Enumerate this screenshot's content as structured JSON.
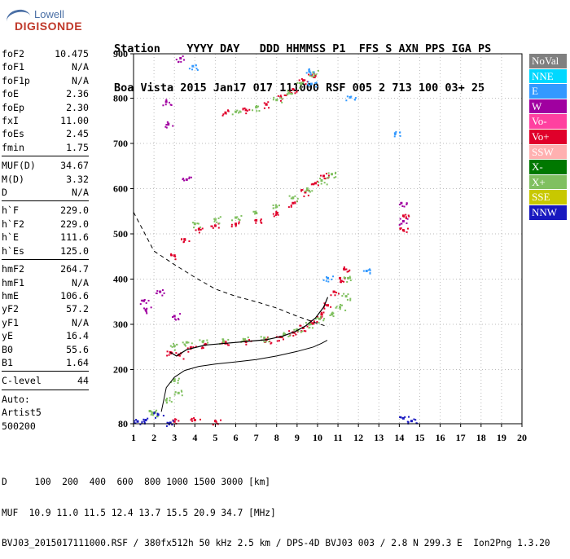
{
  "logo": {
    "line1": "Lowell",
    "line2": "DIGISONDE"
  },
  "header": {
    "line1": "Station    YYYY DAY   DDD HHMMSS P1  FFS S AXN PPS IGA PS",
    "line2": "Boa Vista 2015 Jan17 017 111000 RSF 005 2 713 100 03+ 25"
  },
  "params": [
    [
      [
        "foF2",
        "10.475"
      ],
      [
        "foF1",
        "N/A"
      ],
      [
        "foF1p",
        "N/A"
      ],
      [
        "foE",
        "2.36"
      ],
      [
        "foEp",
        "2.30"
      ],
      [
        "fxI",
        "11.00"
      ],
      [
        "foEs",
        "2.45"
      ],
      [
        "fmin",
        "1.75"
      ]
    ],
    [
      [
        "MUF(D)",
        "34.67"
      ],
      [
        "M(D)",
        "3.32"
      ],
      [
        "D",
        "N/A"
      ]
    ],
    [
      [
        "h`F",
        "229.0"
      ],
      [
        "h`F2",
        "229.0"
      ],
      [
        "h`E",
        "111.6"
      ],
      [
        "h`Es",
        "125.0"
      ]
    ],
    [
      [
        "hmF2",
        "264.7"
      ],
      [
        "hmF1",
        "N/A"
      ],
      [
        "hmE",
        "106.6"
      ],
      [
        "yF2",
        "57.2"
      ],
      [
        "yF1",
        "N/A"
      ],
      [
        "yE",
        "16.4"
      ],
      [
        "B0",
        "55.6"
      ],
      [
        "B1",
        "1.64"
      ]
    ],
    [
      [
        "C-level",
        "44"
      ]
    ]
  ],
  "software": [
    "Auto:",
    "Artist5",
    "500200"
  ],
  "footer": {
    "line1": "D     100  200  400  600  800 1000 1500 3000 [km]",
    "line2": "MUF  10.9 11.0 11.5 12.4 13.7 15.5 20.9 34.7 [MHz]",
    "line3": "BVJ03_2015017111000.RSF / 380fx512h 50 kHz 2.5 km / DPS-4D BVJ03 003 / 2.8 N 299.3 E  Ion2Png 1.3.20"
  },
  "legend": [
    {
      "label": "NoVal",
      "color": "#808080"
    },
    {
      "label": "NNE",
      "color": "#00d8ff"
    },
    {
      "label": "E",
      "color": "#3399ff"
    },
    {
      "label": "W",
      "color": "#a000a0"
    },
    {
      "label": "Vo-",
      "color": "#ff40a0"
    },
    {
      "label": "Vo+",
      "color": "#e0002a"
    },
    {
      "label": "SSW",
      "color": "#ffb0b0"
    },
    {
      "label": "X-",
      "color": "#007800"
    },
    {
      "label": "X+",
      "color": "#80c060"
    },
    {
      "label": "SSE",
      "color": "#c8c800"
    },
    {
      "label": "NNW",
      "color": "#1818c0"
    }
  ],
  "chart_data": {
    "type": "scatter",
    "xlim": [
      1,
      20
    ],
    "ylim": [
      80,
      900
    ],
    "xticks": [
      1,
      2,
      3,
      4,
      5,
      6,
      7,
      8,
      9,
      10,
      11,
      12,
      13,
      14,
      15,
      16,
      17,
      18,
      19,
      20
    ],
    "yticks": [
      80,
      200,
      300,
      400,
      500,
      600,
      700,
      800,
      900
    ],
    "grid": true,
    "series": [
      {
        "name": "Vo+",
        "color": "#e0002a",
        "points": [
          [
            2.8,
            238
          ],
          [
            3.2,
            232
          ],
          [
            3.8,
            248
          ],
          [
            4.5,
            255
          ],
          [
            5.5,
            258
          ],
          [
            6.5,
            262
          ],
          [
            7.5,
            266
          ],
          [
            8.2,
            272
          ],
          [
            8.8,
            282
          ],
          [
            9.3,
            292
          ],
          [
            9.8,
            302
          ],
          [
            10.2,
            322
          ],
          [
            10.5,
            342
          ],
          [
            10.8,
            372
          ],
          [
            11.1,
            402
          ],
          [
            11.3,
            422
          ]
        ]
      },
      {
        "name": "X+",
        "color": "#80c060",
        "points": [
          [
            3.0,
            252
          ],
          [
            3.6,
            260
          ],
          [
            4.4,
            262
          ],
          [
            5.4,
            262
          ],
          [
            6.4,
            266
          ],
          [
            7.4,
            270
          ],
          [
            8.4,
            278
          ],
          [
            9.0,
            288
          ],
          [
            9.6,
            300
          ],
          [
            10.1,
            312
          ],
          [
            10.7,
            322
          ],
          [
            11.1,
            338
          ],
          [
            11.4,
            362
          ],
          [
            11.5,
            402
          ]
        ]
      },
      {
        "name": "Vo+",
        "color": "#e0002a",
        "points": [
          [
            3.0,
            452
          ],
          [
            3.5,
            488
          ],
          [
            4.2,
            510
          ],
          [
            5.0,
            518
          ],
          [
            6.0,
            522
          ],
          [
            7.0,
            530
          ],
          [
            8.0,
            545
          ],
          [
            8.8,
            568
          ],
          [
            9.4,
            592
          ],
          [
            9.9,
            612
          ],
          [
            10.3,
            628
          ]
        ]
      },
      {
        "name": "X+",
        "color": "#80c060",
        "points": [
          [
            4.0,
            522
          ],
          [
            5.0,
            532
          ],
          [
            6.0,
            536
          ],
          [
            7.0,
            546
          ],
          [
            8.0,
            560
          ],
          [
            8.8,
            580
          ],
          [
            9.5,
            600
          ],
          [
            10.2,
            618
          ],
          [
            10.7,
            632
          ]
        ]
      },
      {
        "name": "Vo+",
        "color": "#e0002a",
        "points": [
          [
            5.5,
            768
          ],
          [
            6.5,
            774
          ],
          [
            7.5,
            786
          ],
          [
            8.2,
            802
          ],
          [
            8.8,
            820
          ],
          [
            9.3,
            840
          ],
          [
            9.7,
            852
          ]
        ]
      },
      {
        "name": "X+",
        "color": "#80c060",
        "points": [
          [
            6.0,
            770
          ],
          [
            7.0,
            780
          ],
          [
            8.0,
            796
          ],
          [
            8.6,
            812
          ],
          [
            9.2,
            832
          ],
          [
            9.8,
            858
          ]
        ]
      },
      {
        "name": "W",
        "color": "#a000a0",
        "points": [
          [
            1.5,
            352
          ],
          [
            1.6,
            332
          ],
          [
            2.3,
            372
          ],
          [
            2.6,
            792
          ],
          [
            2.7,
            742
          ],
          [
            3.0,
            318
          ],
          [
            3.3,
            890
          ],
          [
            3.6,
            620
          ],
          [
            14.1,
            568
          ],
          [
            14.2,
            528
          ]
        ]
      },
      {
        "name": "E",
        "color": "#3399ff",
        "points": [
          [
            3.9,
            872
          ],
          [
            9.6,
            860
          ],
          [
            9.7,
            832
          ],
          [
            10.5,
            402
          ],
          [
            11.6,
            802
          ],
          [
            12.4,
            418
          ],
          [
            13.8,
            722
          ]
        ]
      },
      {
        "name": "Vo+",
        "color": "#e0002a",
        "points": [
          [
            3.0,
            85
          ],
          [
            4.0,
            88
          ],
          [
            5.0,
            86
          ],
          [
            14.2,
            540
          ],
          [
            14.2,
            508
          ]
        ]
      },
      {
        "name": "X+",
        "color": "#80c060",
        "points": [
          [
            2.0,
            104
          ],
          [
            2.6,
            132
          ],
          [
            3.0,
            178
          ],
          [
            3.2,
            148
          ],
          [
            1.8,
            108
          ]
        ]
      },
      {
        "name": "NNW",
        "color": "#1818c0",
        "points": [
          [
            1.2,
            85
          ],
          [
            1.6,
            88
          ],
          [
            2.2,
            100
          ],
          [
            2.8,
            82
          ],
          [
            14.2,
            92
          ],
          [
            14.6,
            86
          ]
        ]
      }
    ],
    "profile": [
      [
        2.36,
        106.6
      ],
      [
        2.6,
        160
      ],
      [
        3.0,
        183
      ],
      [
        3.5,
        198
      ],
      [
        4.2,
        207
      ],
      [
        5.0,
        212
      ],
      [
        6.0,
        217
      ],
      [
        7.0,
        222
      ],
      [
        8.0,
        230
      ],
      [
        9.0,
        240
      ],
      [
        9.8,
        250
      ],
      [
        10.2,
        258
      ],
      [
        10.475,
        264.7
      ]
    ],
    "trace": [
      [
        2.8,
        238
      ],
      [
        3.1,
        230
      ],
      [
        3.6,
        244
      ],
      [
        4.5,
        254
      ],
      [
        5.5,
        258
      ],
      [
        6.5,
        262
      ],
      [
        7.5,
        266
      ],
      [
        8.3,
        274
      ],
      [
        8.9,
        284
      ],
      [
        9.4,
        296
      ],
      [
        9.9,
        314
      ],
      [
        10.3,
        338
      ],
      [
        10.5,
        360
      ]
    ],
    "muf": [
      [
        1.0,
        548
      ],
      [
        2.0,
        462
      ],
      [
        3.0,
        432
      ],
      [
        4.0,
        404
      ],
      [
        5.0,
        378
      ],
      [
        6.0,
        362
      ],
      [
        7.0,
        350
      ],
      [
        8.0,
        336
      ],
      [
        9.0,
        318
      ],
      [
        10.0,
        302
      ],
      [
        10.5,
        295
      ]
    ]
  }
}
